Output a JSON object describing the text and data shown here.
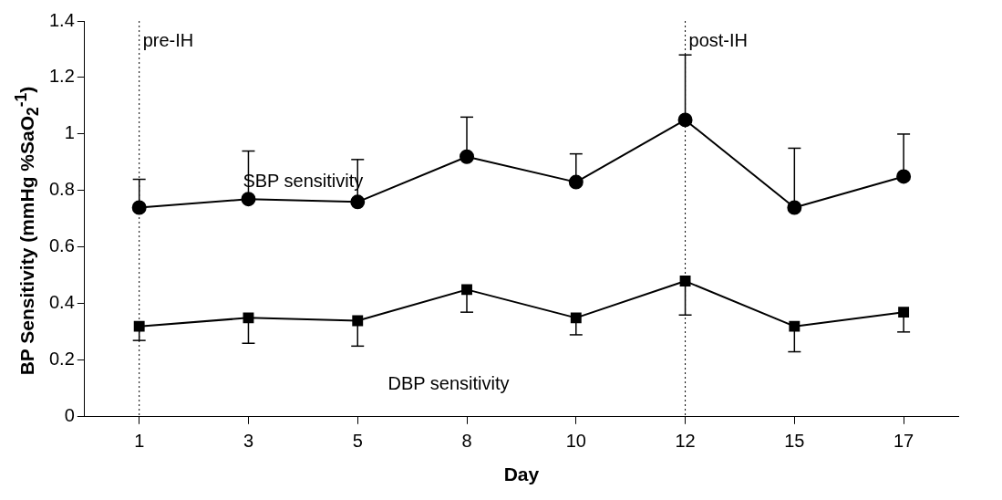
{
  "chart_data": {
    "type": "line",
    "xlabel": "Day",
    "ylabel": "BP Sensitivity (mmHg %SaO$_{2}$$^{-1}$)",
    "categories": [
      "1",
      "3",
      "5",
      "8",
      "10",
      "12",
      "15",
      "17"
    ],
    "ylim": [
      0,
      1.4
    ],
    "yticks": [
      0,
      0.2,
      0.4,
      0.6,
      0.8,
      1,
      1.2,
      1.4
    ],
    "grid": false,
    "legend": false,
    "line_style": "solid",
    "series": [
      {
        "name": "SBP sensitivity",
        "color": "#000000",
        "marker": "circle",
        "values": [
          0.74,
          0.77,
          0.76,
          0.92,
          0.83,
          1.05,
          0.74,
          0.85
        ],
        "errors": [
          [
            0.74,
            0.84
          ],
          [
            0.77,
            0.94
          ],
          [
            0.76,
            0.91
          ],
          [
            0.92,
            1.06
          ],
          [
            0.83,
            0.93
          ],
          [
            1.05,
            1.28
          ],
          [
            0.74,
            0.95
          ],
          [
            0.85,
            1.0
          ]
        ]
      },
      {
        "name": "DBP sensitivity",
        "color": "#000000",
        "marker": "square",
        "values": [
          0.32,
          0.35,
          0.34,
          0.45,
          0.35,
          0.48,
          0.32,
          0.37
        ],
        "errors": [
          [
            0.27,
            0.32
          ],
          [
            0.26,
            0.35
          ],
          [
            0.25,
            0.34
          ],
          [
            0.37,
            0.45
          ],
          [
            0.29,
            0.35
          ],
          [
            0.36,
            0.48
          ],
          [
            0.23,
            0.32
          ],
          [
            0.3,
            0.37
          ]
        ]
      }
    ],
    "ref_lines": [
      {
        "axis": "x",
        "value": "1",
        "label": "pre-IH",
        "line_style": "dotted"
      },
      {
        "axis": "x",
        "value": "12",
        "label": "post-IH",
        "line_style": "dotted"
      }
    ]
  }
}
